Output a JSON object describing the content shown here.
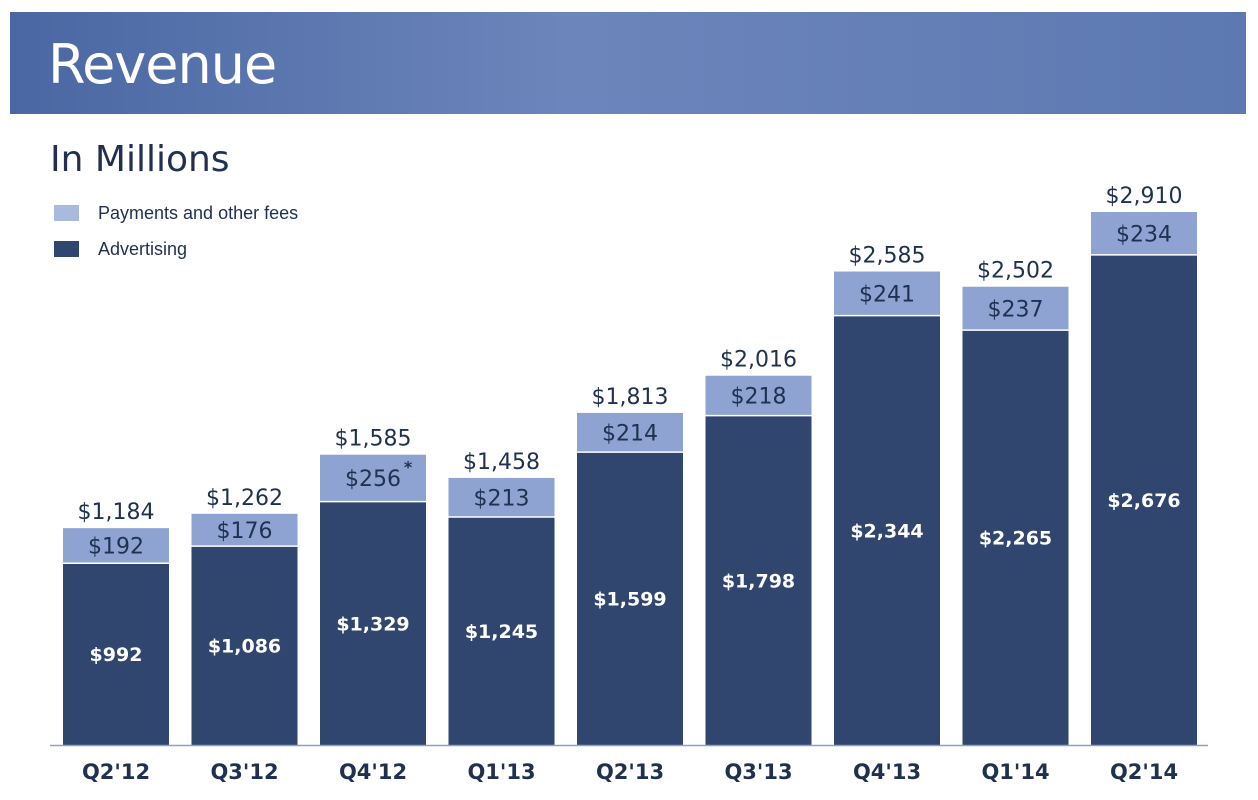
{
  "header": {
    "title": "Revenue"
  },
  "subtitle": "In Millions",
  "colors": {
    "payments": "#8ea3d1",
    "advertising": "#30466f",
    "banner": "#5873ac",
    "text": "#1f3050"
  },
  "legend": [
    {
      "label": "Payments and other fees",
      "color": "#a9bade"
    },
    {
      "label": "Advertising",
      "color": "#30466f"
    }
  ],
  "chart_data": {
    "type": "bar",
    "stacked": true,
    "title": "Revenue",
    "subtitle": "In Millions",
    "categories": [
      "Q2'12",
      "Q3'12",
      "Q4'12",
      "Q1'13",
      "Q2'13",
      "Q3'13",
      "Q4'13",
      "Q1'14",
      "Q2'14"
    ],
    "series": [
      {
        "name": "Advertising",
        "values": [
          992,
          1086,
          1329,
          1245,
          1599,
          1798,
          2344,
          2265,
          2676
        ],
        "labels": [
          "$992",
          "$1,086",
          "$1,329",
          "$1,245",
          "$1,599",
          "$1,798",
          "$2,344",
          "$2,265",
          "$2,676"
        ]
      },
      {
        "name": "Payments and other fees",
        "values": [
          192,
          176,
          256,
          213,
          214,
          218,
          241,
          237,
          234
        ],
        "labels": [
          "$192",
          "$176",
          "$256",
          "$213",
          "$214",
          "$218",
          "$241",
          "$237",
          "$234"
        ]
      }
    ],
    "totals": [
      1184,
      1262,
      1585,
      1458,
      1813,
      2016,
      2585,
      2502,
      2910
    ],
    "total_labels": [
      "$1,184",
      "$1,262",
      "$1,585",
      "$1,458",
      "$1,813",
      "$2,016",
      "$2,585",
      "$2,502",
      "$2,910"
    ],
    "annotations": [
      {
        "category": "Q4'12",
        "series": "Payments and other fees",
        "text": "*"
      }
    ],
    "ylim": [
      0,
      3100
    ],
    "grid": false,
    "legend_position": "top-left"
  }
}
